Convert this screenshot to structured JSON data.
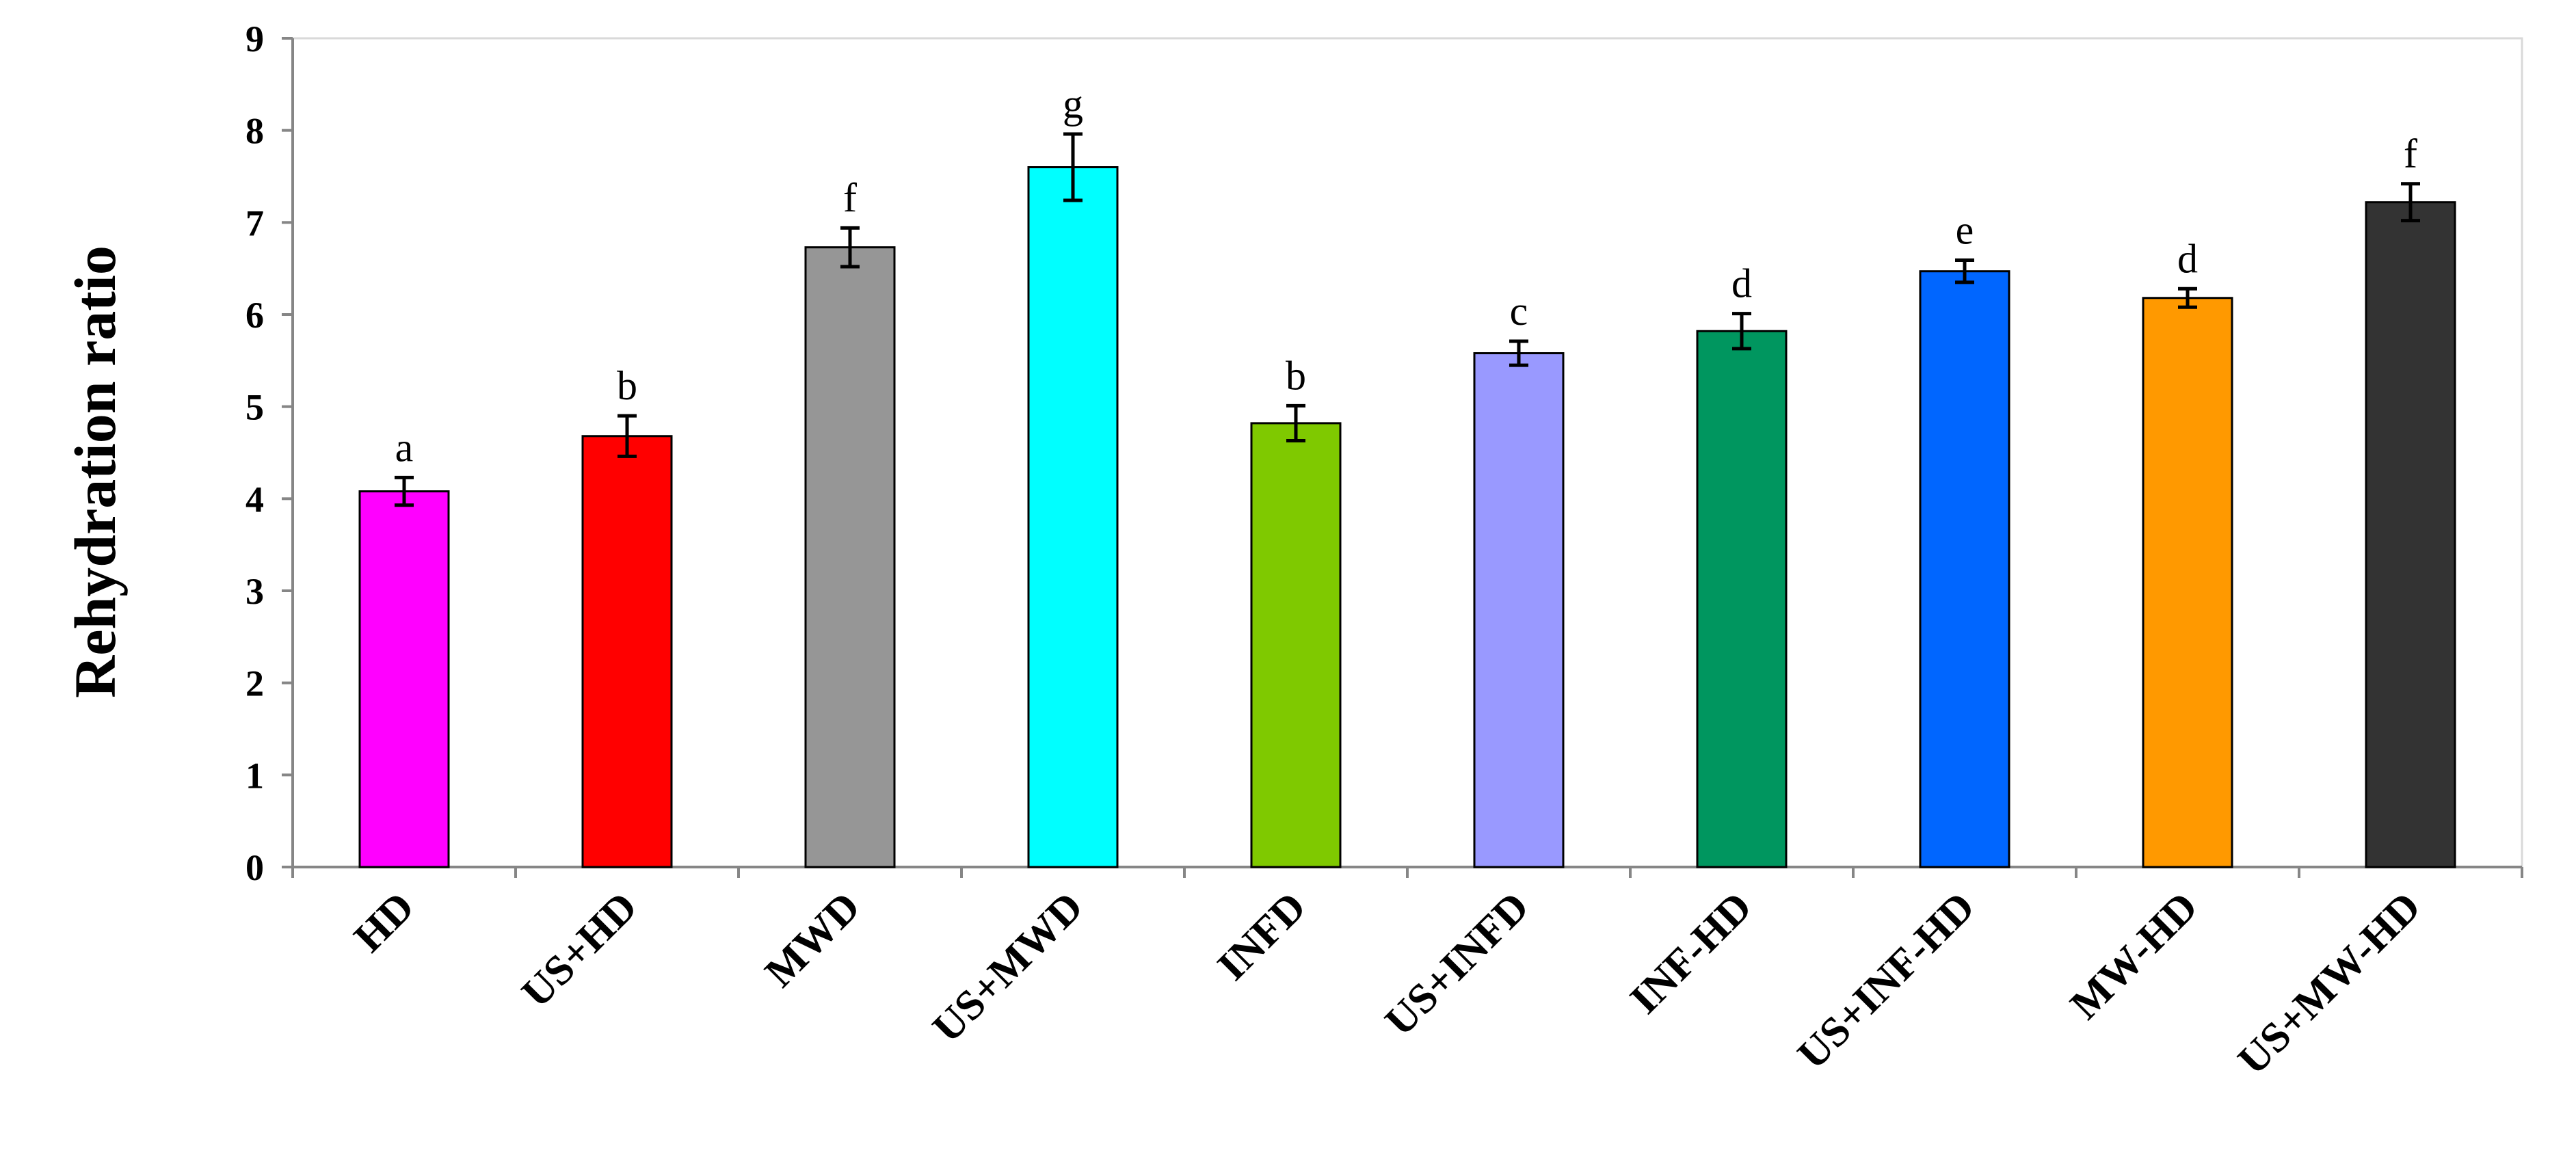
{
  "chart_data": {
    "type": "bar",
    "ylabel": "Rehydration ratio",
    "xlabel": "",
    "ylim": [
      0,
      9
    ],
    "yticks": [
      0,
      1,
      2,
      3,
      4,
      5,
      6,
      7,
      8,
      9
    ],
    "grid": false,
    "categories": [
      "HD",
      "US+HD",
      "MWD",
      "US+MWD",
      "INFD",
      "US+INFD",
      "INF-HD",
      "US+INF-HD",
      "MW-HD",
      "US+MW-HD"
    ],
    "values": [
      4.08,
      4.68,
      6.73,
      7.6,
      4.82,
      5.58,
      5.82,
      6.47,
      6.18,
      7.22
    ],
    "errors": [
      0.15,
      0.22,
      0.21,
      0.36,
      0.19,
      0.13,
      0.19,
      0.12,
      0.1,
      0.2
    ],
    "significance_letters": [
      "a",
      "b",
      "f",
      "g",
      "b",
      "c",
      "d",
      "e",
      "d",
      "f"
    ],
    "colors": [
      "#ff00ff",
      "#ff0000",
      "#969696",
      "#00ffff",
      "#7fc900",
      "#9999ff",
      "#00965f",
      "#0066ff",
      "#ff9900",
      "#333333"
    ]
  }
}
